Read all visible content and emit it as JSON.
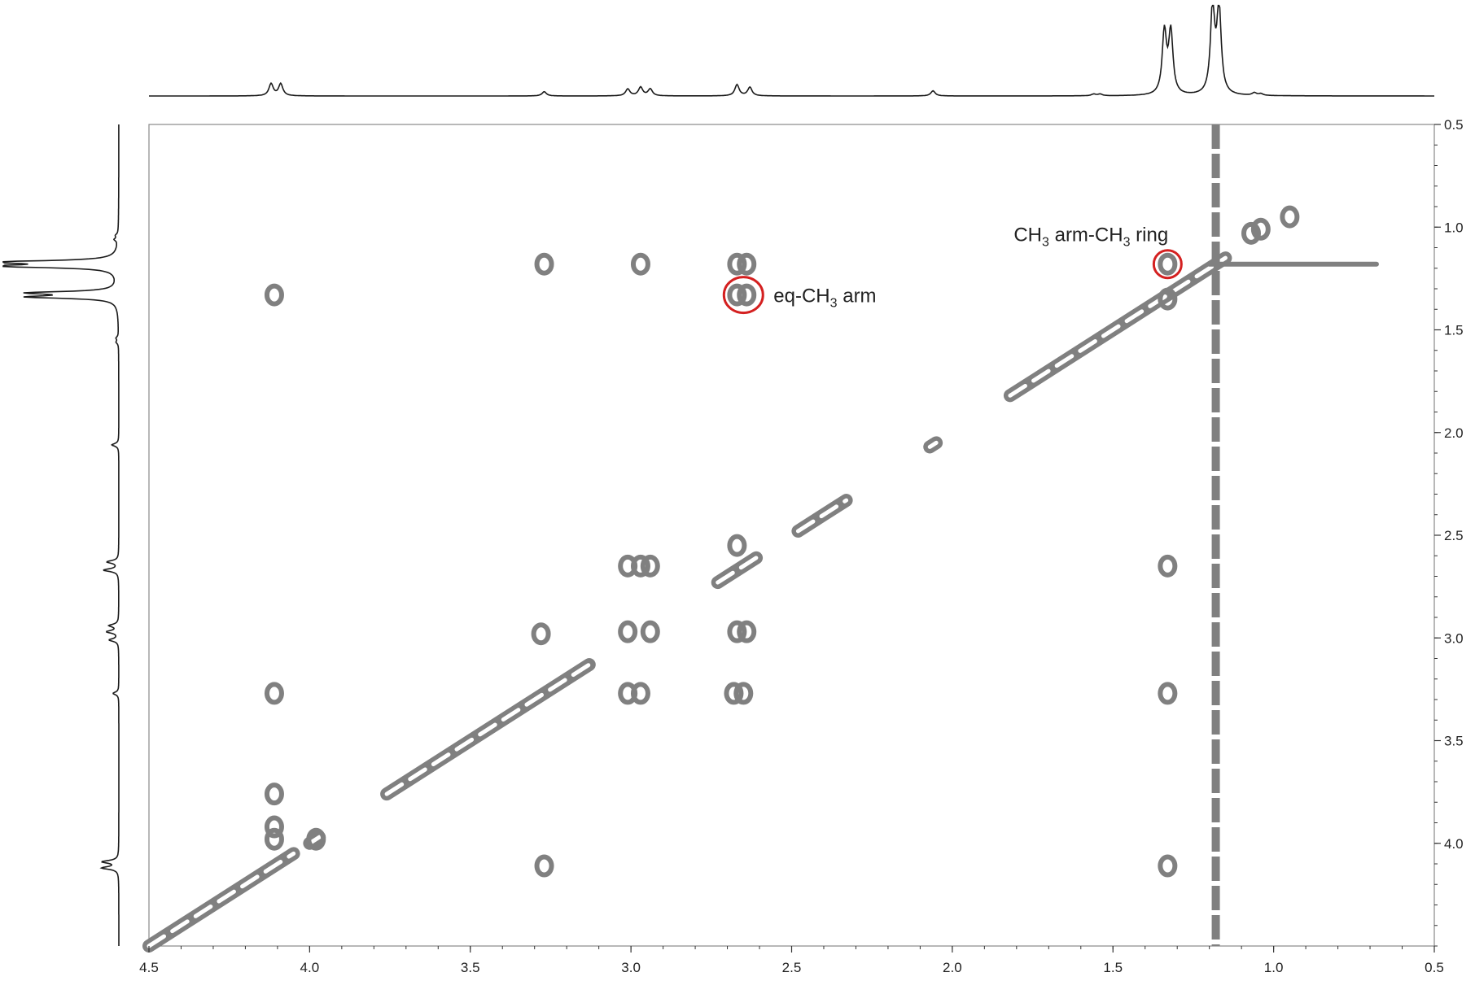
{
  "chart_data": {
    "type": "scatter",
    "subtype": "2D NMR COSY contour plot with projection spectra",
    "title": "",
    "xlabel": "",
    "ylabel": "",
    "x_axis": {
      "range": [
        4.5,
        0.5
      ],
      "reversed": true,
      "position": "bottom",
      "ticks": [
        4.5,
        4.0,
        3.5,
        3.0,
        2.5,
        2.0,
        1.5,
        1.0,
        0.5
      ],
      "tick_labels": [
        "4.5",
        "4.0",
        "3.5",
        "3.0",
        "2.5",
        "2.0",
        "1.5",
        "1.0",
        "0.5"
      ]
    },
    "y_axis": {
      "range": [
        0.5,
        4.5
      ],
      "position": "right",
      "ticks": [
        0.5,
        1.0,
        1.5,
        2.0,
        2.5,
        3.0,
        3.5,
        4.0
      ],
      "tick_labels": [
        "0.5",
        "1.0",
        "1.5",
        "2.0",
        "2.5",
        "3.0",
        "3.5",
        "4.0"
      ]
    },
    "grid": false,
    "colors": {
      "contour": "#808080",
      "projection": "#1a1a1a",
      "annotation_circle": "#d42020",
      "axis": "#333333"
    },
    "diagonal": [
      {
        "x0": 4.5,
        "x1": 4.05,
        "label": "diag-4.1"
      },
      {
        "x0": 4.0,
        "x1": 3.97,
        "label": "diag-4.0"
      },
      {
        "x0": 3.76,
        "x1": 3.13,
        "label": "diag-3.3"
      },
      {
        "x0": 2.73,
        "x1": 2.61,
        "label": "diag-2.66"
      },
      {
        "x0": 2.48,
        "x1": 2.33,
        "label": "diag-2.4"
      },
      {
        "x0": 2.07,
        "x1": 2.05,
        "label": "diag-2.06"
      },
      {
        "x0": 1.82,
        "x1": 1.15,
        "label": "diag-1.5"
      }
    ],
    "cross_peaks": [
      {
        "x": 3.27,
        "y": 1.18
      },
      {
        "x": 2.97,
        "y": 1.18
      },
      {
        "x": 2.67,
        "y": 1.18
      },
      {
        "x": 2.64,
        "y": 1.18
      },
      {
        "x": 2.67,
        "y": 1.33
      },
      {
        "x": 2.64,
        "y": 1.33
      },
      {
        "x": 4.11,
        "y": 1.33
      },
      {
        "x": 1.33,
        "y": 1.18
      },
      {
        "x": 1.07,
        "y": 1.03
      },
      {
        "x": 1.04,
        "y": 1.01
      },
      {
        "x": 0.95,
        "y": 0.95
      },
      {
        "x": 1.33,
        "y": 2.65
      },
      {
        "x": 1.33,
        "y": 4.11
      },
      {
        "x": 3.01,
        "y": 2.65
      },
      {
        "x": 2.97,
        "y": 2.65
      },
      {
        "x": 2.94,
        "y": 2.65
      },
      {
        "x": 3.01,
        "y": 2.97
      },
      {
        "x": 2.94,
        "y": 2.97
      },
      {
        "x": 2.67,
        "y": 2.97
      },
      {
        "x": 2.64,
        "y": 2.97
      },
      {
        "x": 3.28,
        "y": 2.98
      },
      {
        "x": 3.01,
        "y": 3.27
      },
      {
        "x": 2.97,
        "y": 3.27
      },
      {
        "x": 2.68,
        "y": 3.27
      },
      {
        "x": 2.65,
        "y": 3.27
      },
      {
        "x": 4.11,
        "y": 3.27
      },
      {
        "x": 3.27,
        "y": 4.11
      },
      {
        "x": 4.11,
        "y": 3.92
      },
      {
        "x": 4.11,
        "y": 3.98
      },
      {
        "x": 3.98,
        "y": 3.98
      },
      {
        "x": 4.11,
        "y": 3.76
      },
      {
        "x": 2.67,
        "y": 2.55
      },
      {
        "x": 1.33,
        "y": 1.35
      },
      {
        "x": 1.33,
        "y": 3.27
      }
    ],
    "vertical_streak": {
      "x": 1.18,
      "y_range": [
        0.5,
        4.5
      ]
    },
    "horizontal_streak": {
      "y": 1.18,
      "x_range": [
        1.2,
        0.68
      ]
    },
    "projection_peaks": [
      {
        "ppm": 4.12,
        "height": 0.14
      },
      {
        "ppm": 4.09,
        "height": 0.14
      },
      {
        "ppm": 3.27,
        "height": 0.05
      },
      {
        "ppm": 3.01,
        "height": 0.08
      },
      {
        "ppm": 2.97,
        "height": 0.1
      },
      {
        "ppm": 2.94,
        "height": 0.08
      },
      {
        "ppm": 2.67,
        "height": 0.13
      },
      {
        "ppm": 2.63,
        "height": 0.1
      },
      {
        "ppm": 2.06,
        "height": 0.06
      },
      {
        "ppm": 1.56,
        "height": 0.02
      },
      {
        "ppm": 1.54,
        "height": 0.02
      },
      {
        "ppm": 1.34,
        "height": 0.72
      },
      {
        "ppm": 1.32,
        "height": 0.72
      },
      {
        "ppm": 1.19,
        "height": 1.0
      },
      {
        "ppm": 1.17,
        "height": 1.0
      },
      {
        "ppm": 1.06,
        "height": 0.03
      },
      {
        "ppm": 1.04,
        "height": 0.02
      }
    ],
    "annotations": [
      {
        "id": "eq-ch3-arm",
        "base": "eq-CH",
        "sub": "3",
        "suffix": " arm",
        "x": 2.65,
        "y": 1.33
      },
      {
        "id": "ch3-arm-ch3-ring",
        "base": "CH",
        "sub": "3",
        "mid": " arm-CH",
        "sub2": "3",
        "suffix": " ring",
        "x": 1.33,
        "y": 1.18
      }
    ]
  }
}
